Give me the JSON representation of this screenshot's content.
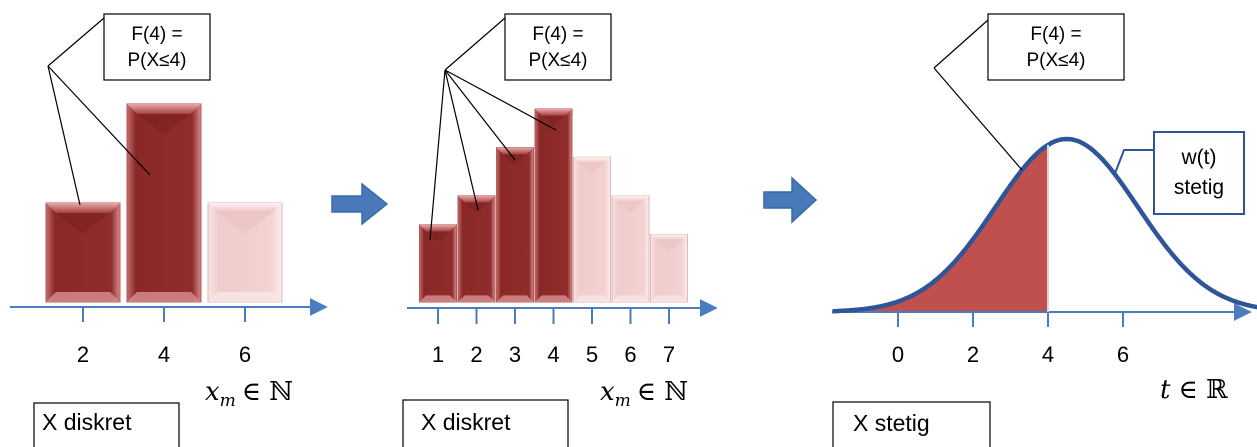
{
  "panel1": {
    "callout": {
      "line1": "F(4) =",
      "line2": "P(X≤4)"
    },
    "tick_labels": [
      "2",
      "4",
      "6"
    ],
    "axis_label_var": "x",
    "axis_label_sub": "m",
    "axis_label_set": "∈ ℕ",
    "caption": "X diskret",
    "bars": [
      {
        "x": 2,
        "value": 0.25,
        "highlighted": true
      },
      {
        "x": 4,
        "value": 0.5,
        "highlighted": true
      },
      {
        "x": 6,
        "value": 0.25,
        "highlighted": false
      }
    ]
  },
  "panel2": {
    "callout": {
      "line1": "F(4) =",
      "line2": "P(X≤4)"
    },
    "tick_labels": [
      "1",
      "2",
      "3",
      "4",
      "5",
      "6",
      "7"
    ],
    "axis_label_var": "x",
    "axis_label_sub": "m",
    "axis_label_set": "∈ ℕ",
    "caption": "X diskret",
    "bars": [
      {
        "x": 1,
        "value": 0.08,
        "highlighted": true
      },
      {
        "x": 2,
        "value": 0.11,
        "highlighted": true
      },
      {
        "x": 3,
        "value": 0.16,
        "highlighted": true
      },
      {
        "x": 4,
        "value": 0.2,
        "highlighted": true
      },
      {
        "x": 5,
        "value": 0.15,
        "highlighted": false
      },
      {
        "x": 6,
        "value": 0.11,
        "highlighted": false
      },
      {
        "x": 7,
        "value": 0.07,
        "highlighted": false
      }
    ]
  },
  "panel3": {
    "callout": {
      "line1": "F(4) =",
      "line2": "P(X≤4)"
    },
    "tick_labels": [
      "0",
      "2",
      "4",
      "6"
    ],
    "axis_label_var": "t",
    "axis_label_set": "∈ ℝ",
    "caption": "X stetig",
    "curve_label": {
      "line1": "w(t)",
      "line2": "stetig"
    },
    "curve": {
      "mean": 4.5,
      "sd": 1.9,
      "shade_upto": 4
    }
  },
  "colors": {
    "bar_dark": "#8f2a2a",
    "bar_light": "#f3d6d6",
    "axis": "#4a7cc0",
    "curve": "#2e5597",
    "fill": "#c0504d",
    "arrow": "#4a79b9"
  }
}
